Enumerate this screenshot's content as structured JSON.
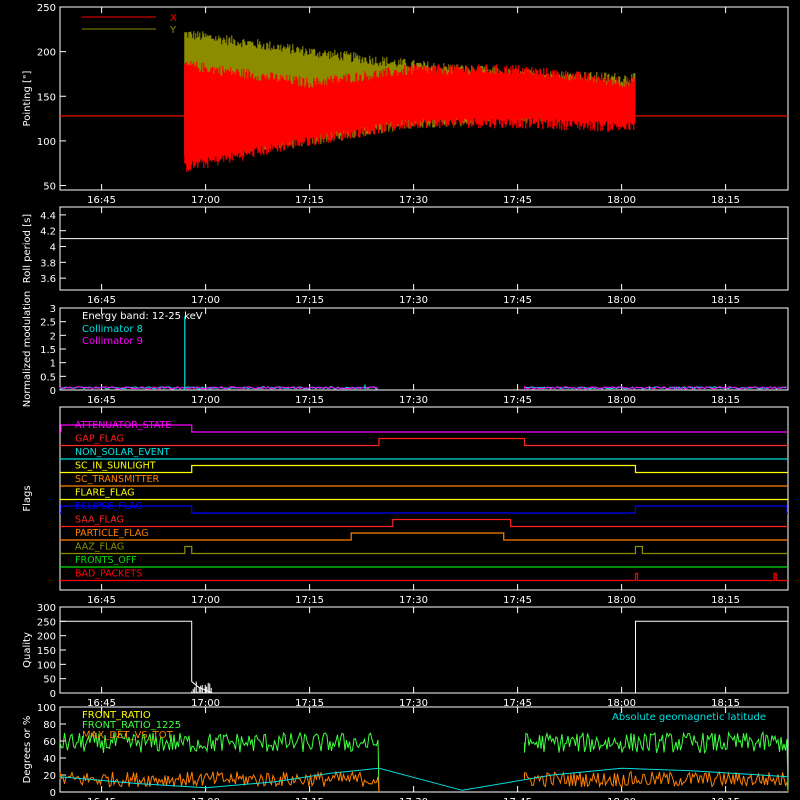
{
  "colors": {
    "red": "#ff0000",
    "olive": "#8c8c00",
    "white": "#ffffff",
    "cyan": "#00e0e0",
    "magenta": "#ff00ff",
    "orange": "#ff8000",
    "yellow": "#ffff00",
    "blue": "#0000ff",
    "green": "#00e000",
    "light_green": "#40ff40"
  },
  "time_ticks": [
    "16:45",
    "17:00",
    "17:15",
    "17:30",
    "17:45",
    "18:00",
    "18:15"
  ],
  "chart_data": [
    {
      "id": "pointing",
      "type": "line",
      "ylabel": "Pointing [\"]",
      "ylim": [
        45,
        250
      ],
      "yticks": [
        50,
        100,
        150,
        200,
        250
      ],
      "series": [
        {
          "name": "X",
          "color": "#ff0000",
          "baseline": 128,
          "active": [
            "16:57",
            "18:02"
          ],
          "upper": [
            [
              16.95,
              185
            ],
            [
              17.25,
              165
            ],
            [
              17.5,
              180
            ],
            [
              17.75,
              180
            ],
            [
              18.03,
              165
            ]
          ],
          "lower": [
            [
              16.95,
              70
            ],
            [
              17.25,
              100
            ],
            [
              17.5,
              120
            ],
            [
              17.75,
              120
            ],
            [
              18.03,
              115
            ]
          ]
        },
        {
          "name": "Y",
          "color": "#8c8c00",
          "baseline": 128,
          "active": [
            "16:57",
            "18:02"
          ],
          "upper": [
            [
              16.95,
              220
            ],
            [
              17.25,
              200
            ],
            [
              17.5,
              185
            ],
            [
              17.75,
              175
            ],
            [
              18.03,
              170
            ]
          ],
          "lower": [
            [
              16.95,
              85
            ],
            [
              17.25,
              100
            ],
            [
              17.5,
              120
            ],
            [
              17.75,
              125
            ],
            [
              18.03,
              130
            ]
          ]
        }
      ]
    },
    {
      "id": "roll",
      "type": "line",
      "ylabel": "Roll period [s]",
      "ylim": [
        3.45,
        4.5
      ],
      "yticks": [
        3.6,
        3.8,
        4.0,
        4.2,
        4.4
      ],
      "series": [
        {
          "color": "#ffffff",
          "value": 4.1
        }
      ]
    },
    {
      "id": "modulation",
      "type": "line",
      "ylabel": "Normalized modulation",
      "ylim": [
        0,
        3.0
      ],
      "yticks": [
        0.0,
        0.5,
        1.0,
        1.5,
        2.0,
        2.5,
        3.0
      ],
      "annotation": "Energy band: 12-25 keV",
      "series": [
        {
          "name": "Collimator 8",
          "color": "#00e0e0"
        },
        {
          "name": "Collimator 9",
          "color": "#ff00ff"
        }
      ],
      "gap": [
        "17:25",
        "17:46"
      ],
      "spikes": [
        {
          "time": "16:57",
          "value": 2.7,
          "color": "#00e0e0"
        },
        {
          "time": "17:23",
          "value": 0.2,
          "color": "#00e0e0"
        },
        {
          "time": "18:04",
          "value": 0.15,
          "color": "#00e0e0"
        }
      ]
    },
    {
      "id": "flags",
      "type": "line",
      "ylabel": "Flags",
      "flags": [
        {
          "name": "ATTENUATOR_STATE",
          "color": "#ff00ff",
          "high": [
            [
              "16:39",
              "16:58"
            ]
          ]
        },
        {
          "name": "GAP_FLAG",
          "color": "#ff2020",
          "high": [
            [
              "17:25",
              "17:46"
            ]
          ]
        },
        {
          "name": "NON_SOLAR_EVENT",
          "color": "#00e0e0",
          "high": []
        },
        {
          "name": "SC_IN_SUNLIGHT",
          "color": "#ffff00",
          "high": [
            [
              "16:58",
              "18:02"
            ]
          ]
        },
        {
          "name": "SC_TRANSMITTER",
          "color": "#ff8000",
          "high": []
        },
        {
          "name": "FLARE_FLAG",
          "color": "#ffff00",
          "high": []
        },
        {
          "name": "ECLIPSE_FLAG",
          "color": "#0000ff",
          "high": [
            [
              "16:39",
              "16:58"
            ],
            [
              "18:02",
              "18:24"
            ]
          ]
        },
        {
          "name": "SAA_FLAG",
          "color": "#ff2020",
          "high": [
            [
              "17:27",
              "17:44"
            ]
          ]
        },
        {
          "name": "PARTICLE_FLAG",
          "color": "#ff8000",
          "high": [
            [
              "17:21",
              "17:43"
            ]
          ]
        },
        {
          "name": "AAZ_FLAG",
          "color": "#8c8c00",
          "high": [
            [
              "16:57",
              "16:58"
            ],
            [
              "18:02",
              "18:03"
            ]
          ]
        },
        {
          "name": "FRONTS_OFF",
          "color": "#00e000",
          "high": []
        },
        {
          "name": "BAD_PACKETS",
          "color": "#ff0000",
          "high": [
            [
              "18:02",
              "18:02"
            ],
            [
              "18:22",
              "18:22"
            ]
          ]
        }
      ]
    },
    {
      "id": "quality",
      "type": "line",
      "ylabel": "Quality",
      "ylim": [
        0,
        300
      ],
      "yticks": [
        0,
        50,
        100,
        150,
        200,
        250,
        300
      ],
      "points": [
        [
          "16:39",
          250
        ],
        [
          "16:58",
          250
        ],
        [
          "16:58",
          40
        ],
        [
          "16:59",
          20
        ],
        [
          "17:00",
          10
        ],
        [
          "17:01",
          0
        ],
        [
          "18:02",
          0
        ],
        [
          "18:02",
          250
        ],
        [
          "18:24",
          250
        ]
      ]
    },
    {
      "id": "ratios",
      "type": "line",
      "ylabel": "Degrees or %",
      "ylim": [
        0,
        100
      ],
      "yticks": [
        0,
        20,
        40,
        60,
        80,
        100
      ],
      "annotation": "Absolute geomagnetic latitude",
      "series": [
        {
          "name": "FRONT_RATIO",
          "color": "#ffff00"
        },
        {
          "name": "FRONT_RATIO_1225",
          "color": "#40ff40",
          "level": 58
        },
        {
          "name": "MAX_DET_VS_TOT",
          "color": "#ff8000",
          "level": 15
        },
        {
          "name": "Absolute geomagnetic latitude",
          "color": "#00e0e0",
          "points": [
            [
              "16:39",
              18
            ],
            [
              "16:50",
              10
            ],
            [
              "17:00",
              5
            ],
            [
              "17:10",
              12
            ],
            [
              "17:18",
              22
            ],
            [
              "17:25",
              28
            ],
            [
              "17:37",
              2
            ],
            [
              "17:50",
              20
            ],
            [
              "18:00",
              28
            ],
            [
              "18:10",
              25
            ],
            [
              "18:24",
              18
            ]
          ]
        }
      ],
      "gap": [
        "17:25",
        "17:46"
      ]
    }
  ]
}
